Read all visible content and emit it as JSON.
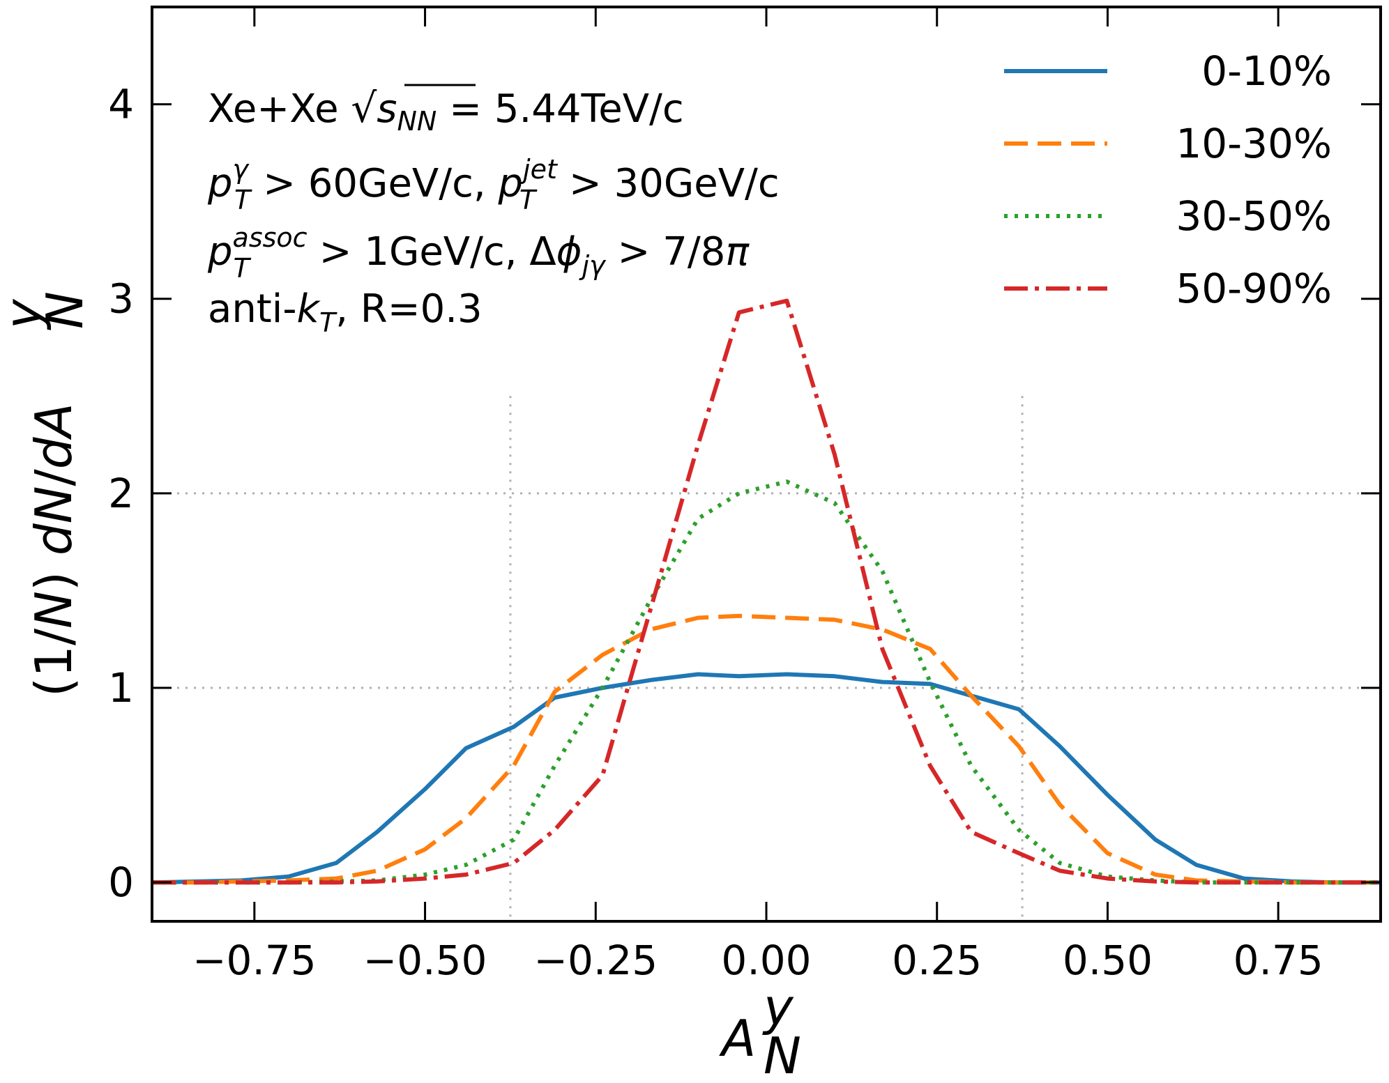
{
  "chart_data": {
    "type": "line",
    "xlabel": "A",
    "xlabel_sup": "y",
    "xlabel_sub": "N",
    "ylabel_prefix": "(1/N) dN/dA",
    "ylabel_sup": "y",
    "ylabel_sub": "N",
    "xlim": [
      -0.9,
      0.9
    ],
    "ylim": [
      -0.2,
      4.5
    ],
    "xticks": [
      "−0.75",
      "−0.50",
      "−0.25",
      "0.00",
      "0.25",
      "0.50",
      "0.75"
    ],
    "xtick_values": [
      -0.75,
      -0.5,
      -0.25,
      0.0,
      0.25,
      0.5,
      0.75
    ],
    "yticks": [
      "0",
      "1",
      "2",
      "3",
      "4"
    ],
    "ytick_values": [
      0,
      1,
      2,
      3,
      4
    ],
    "grid": {
      "horizontal": [
        1,
        2
      ],
      "vertical": [
        -0.375,
        0.375
      ],
      "style": "dotted"
    },
    "legend_position": "top-right",
    "annotations": [
      "Xe+Xe √s_NN = 5.44TeV/c",
      "p_T^γ > 60GeV/c, p_T^jet > 30GeV/c",
      "p_T^assoc > 1GeV/c, Δφ_jγ > 7/8π",
      "anti-k_T, R=0.3"
    ],
    "series": [
      {
        "name": "0-10%",
        "color": "#1f77b4",
        "style": "solid",
        "x": [
          -0.9,
          -0.83,
          -0.77,
          -0.7,
          -0.63,
          -0.57,
          -0.5,
          -0.44,
          -0.37,
          -0.31,
          -0.24,
          -0.17,
          -0.1,
          -0.04,
          0.03,
          0.1,
          0.17,
          0.24,
          0.3,
          0.37,
          0.43,
          0.5,
          0.57,
          0.63,
          0.7,
          0.77,
          0.83,
          0.9
        ],
        "values": [
          0,
          0.005,
          0.01,
          0.03,
          0.1,
          0.26,
          0.48,
          0.69,
          0.8,
          0.95,
          1.0,
          1.04,
          1.07,
          1.06,
          1.07,
          1.06,
          1.03,
          1.02,
          0.96,
          0.89,
          0.7,
          0.45,
          0.22,
          0.09,
          0.02,
          0.005,
          0,
          0
        ]
      },
      {
        "name": "10-30%",
        "color": "#ff7f0e",
        "style": "dashed",
        "x": [
          -0.9,
          -0.83,
          -0.77,
          -0.7,
          -0.63,
          -0.57,
          -0.5,
          -0.44,
          -0.37,
          -0.31,
          -0.24,
          -0.17,
          -0.1,
          -0.04,
          0.03,
          0.1,
          0.17,
          0.24,
          0.3,
          0.37,
          0.43,
          0.5,
          0.57,
          0.63,
          0.7,
          0.77,
          0.83,
          0.9
        ],
        "values": [
          0,
          0,
          0.005,
          0.01,
          0.02,
          0.06,
          0.17,
          0.33,
          0.6,
          0.98,
          1.17,
          1.3,
          1.36,
          1.37,
          1.36,
          1.35,
          1.3,
          1.2,
          0.96,
          0.7,
          0.4,
          0.15,
          0.04,
          0.01,
          0.005,
          0,
          0,
          0
        ]
      },
      {
        "name": "30-50%",
        "color": "#2ca02c",
        "style": "dotted",
        "x": [
          -0.9,
          -0.83,
          -0.77,
          -0.7,
          -0.63,
          -0.57,
          -0.5,
          -0.44,
          -0.37,
          -0.31,
          -0.24,
          -0.17,
          -0.1,
          -0.04,
          0.03,
          0.1,
          0.17,
          0.24,
          0.3,
          0.37,
          0.43,
          0.5,
          0.57,
          0.63,
          0.7,
          0.77,
          0.83,
          0.9
        ],
        "values": [
          0,
          0,
          0,
          0,
          0.005,
          0.01,
          0.04,
          0.09,
          0.22,
          0.6,
          1.0,
          1.45,
          1.87,
          2.0,
          2.06,
          1.95,
          1.6,
          1.03,
          0.6,
          0.27,
          0.1,
          0.03,
          0.01,
          0,
          0,
          0,
          0,
          0
        ]
      },
      {
        "name": "50-90%",
        "color": "#d62728",
        "style": "dashdot",
        "x": [
          -0.9,
          -0.83,
          -0.77,
          -0.7,
          -0.63,
          -0.57,
          -0.5,
          -0.44,
          -0.37,
          -0.31,
          -0.24,
          -0.17,
          -0.1,
          -0.04,
          0.03,
          0.1,
          0.17,
          0.24,
          0.3,
          0.37,
          0.43,
          0.5,
          0.57,
          0.63,
          0.7,
          0.77,
          0.83,
          0.9
        ],
        "values": [
          0,
          0,
          0,
          0,
          0,
          0.005,
          0.02,
          0.04,
          0.1,
          0.27,
          0.55,
          1.4,
          2.25,
          2.93,
          2.99,
          2.2,
          1.2,
          0.6,
          0.26,
          0.15,
          0.06,
          0.02,
          0.005,
          0,
          0,
          0,
          0,
          0
        ]
      }
    ]
  }
}
